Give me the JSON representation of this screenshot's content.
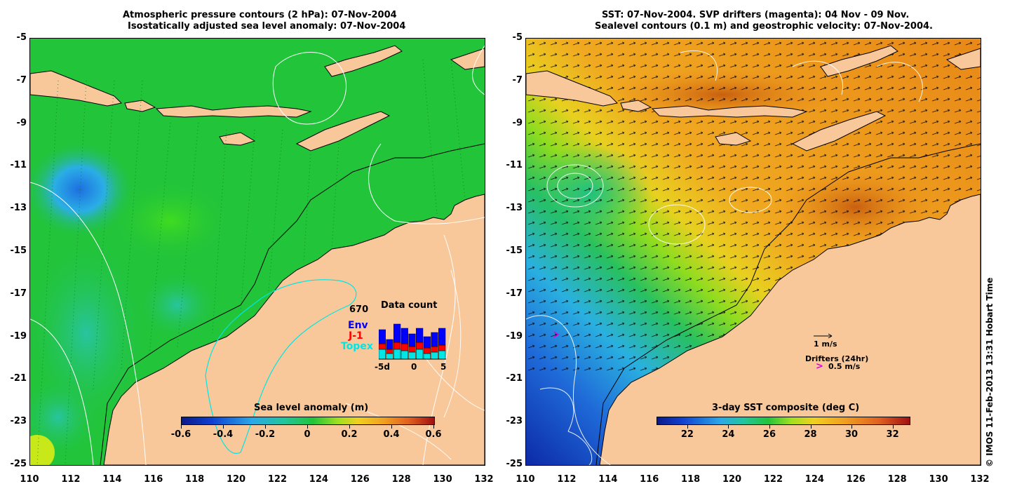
{
  "left_panel": {
    "title_line1": "Atmospheric pressure contours (2 hPa): 07-Nov-2004",
    "title_line2": "Isostatically adjusted sea level anomaly: 07-Nov-2004",
    "colorbar": {
      "title": "Sea level anomaly (m)",
      "ticks": [
        "-0.6",
        "-0.4",
        "-0.2",
        "0",
        "0.2",
        "0.4",
        "0.6"
      ],
      "range": [
        -0.6,
        0.6
      ]
    },
    "inset": {
      "count": "670",
      "title": "Data count",
      "labels": [
        {
          "text": "Env",
          "color": "#0000ff"
        },
        {
          "text": "J-1",
          "color": "#ff0000"
        },
        {
          "text": "Topex",
          "color": "#00e5e5"
        }
      ],
      "x_ticks": [
        "-5d",
        "0",
        "5"
      ]
    }
  },
  "right_panel": {
    "title_line1": "SST: 07-Nov-2004. SVP drifters (magenta): 04 Nov - 09 Nov.",
    "title_line2": "Sealevel contours (0.1 m) and geostrophic velocity: 07-Nov-2004.",
    "colorbar": {
      "title": "3-day SST composite (deg C)",
      "ticks": [
        "22",
        "24",
        "26",
        "28",
        "30",
        "32"
      ],
      "range": [
        20.5,
        32.8
      ]
    },
    "velocity_scale": "1 m/s",
    "drifters_label": "Drifters (24hr)",
    "drifters_scale": "0.5 m/s"
  },
  "axes": {
    "lat_ticks": [
      "-5",
      "-7",
      "-9",
      "-11",
      "-13",
      "-15",
      "-17",
      "-19",
      "-21",
      "-23",
      "-25"
    ],
    "lon_ticks": [
      "110",
      "112",
      "114",
      "116",
      "118",
      "120",
      "122",
      "124",
      "126",
      "128",
      "130",
      "132"
    ],
    "lon_range": [
      110,
      132
    ],
    "lat_range": [
      -25,
      -5
    ]
  },
  "copyright": "© IMOS 11-Feb-2013 13:31 Hobart Time",
  "colors": {
    "land": "#f9c89a",
    "sla_ocean": "#22c43a",
    "sst_warm": "#f0961e"
  }
}
